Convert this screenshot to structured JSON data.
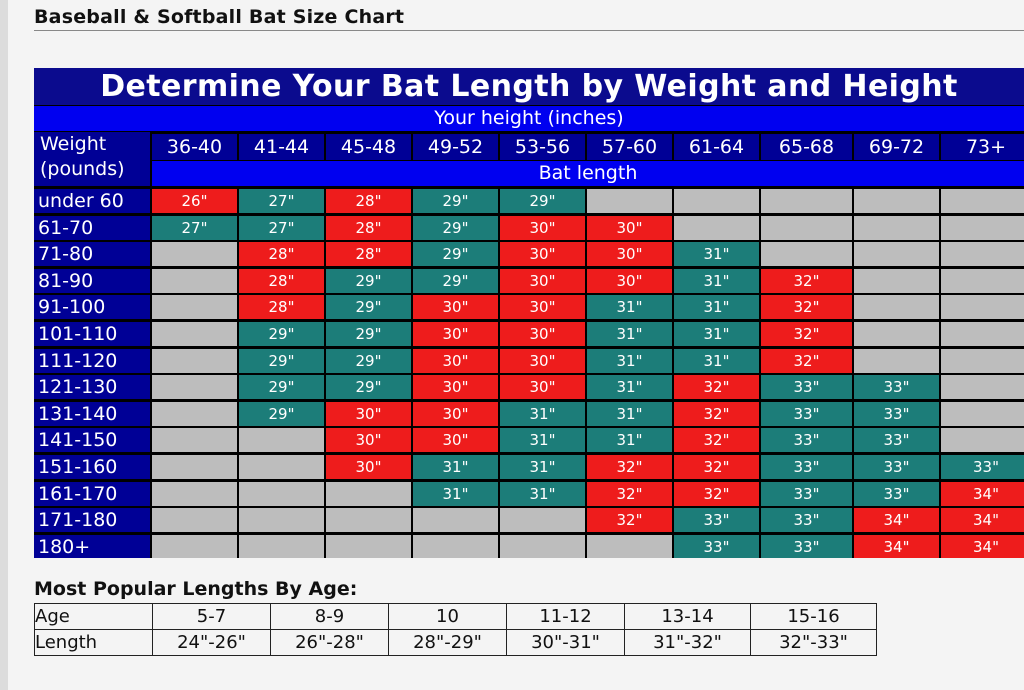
{
  "page_title": "Baseball & Softball Bat Size Chart",
  "chart": {
    "title": "Determine Your Bat Length by Weight and Height",
    "height_label": "Your height (inches)",
    "weight_label_line1": "Weight",
    "weight_label_line2": "(pounds)",
    "bat_length_label": "Bat length",
    "heights": [
      "36-40",
      "41-44",
      "45-48",
      "49-52",
      "53-56",
      "57-60",
      "61-64",
      "65-68",
      "69-72",
      "73+"
    ],
    "rows": [
      {
        "weight": "under 60",
        "cells": [
          [
            "26\"",
            "r"
          ],
          [
            "27\"",
            "t"
          ],
          [
            "28\"",
            "r"
          ],
          [
            "29\"",
            "t"
          ],
          [
            "29\"",
            "t"
          ],
          [
            "",
            "g"
          ],
          [
            "",
            "g"
          ],
          [
            "",
            "g"
          ],
          [
            "",
            "g"
          ],
          [
            "",
            "g"
          ]
        ]
      },
      {
        "weight": "61-70",
        "cells": [
          [
            "27\"",
            "t"
          ],
          [
            "27\"",
            "t"
          ],
          [
            "28\"",
            "r"
          ],
          [
            "29\"",
            "t"
          ],
          [
            "30\"",
            "r"
          ],
          [
            "30\"",
            "r"
          ],
          [
            "",
            "g"
          ],
          [
            "",
            "g"
          ],
          [
            "",
            "g"
          ],
          [
            "",
            "g"
          ]
        ]
      },
      {
        "weight": "71-80",
        "cells": [
          [
            "",
            "g"
          ],
          [
            "28\"",
            "r"
          ],
          [
            "28\"",
            "r"
          ],
          [
            "29\"",
            "t"
          ],
          [
            "30\"",
            "r"
          ],
          [
            "30\"",
            "r"
          ],
          [
            "31\"",
            "t"
          ],
          [
            "",
            "g"
          ],
          [
            "",
            "g"
          ],
          [
            "",
            "g"
          ]
        ]
      },
      {
        "weight": "81-90",
        "cells": [
          [
            "",
            "g"
          ],
          [
            "28\"",
            "r"
          ],
          [
            "29\"",
            "t"
          ],
          [
            "29\"",
            "t"
          ],
          [
            "30\"",
            "r"
          ],
          [
            "30\"",
            "r"
          ],
          [
            "31\"",
            "t"
          ],
          [
            "32\"",
            "r"
          ],
          [
            "",
            "g"
          ],
          [
            "",
            "g"
          ]
        ]
      },
      {
        "weight": "91-100",
        "cells": [
          [
            "",
            "g"
          ],
          [
            "28\"",
            "r"
          ],
          [
            "29\"",
            "t"
          ],
          [
            "30\"",
            "r"
          ],
          [
            "30\"",
            "r"
          ],
          [
            "31\"",
            "t"
          ],
          [
            "31\"",
            "t"
          ],
          [
            "32\"",
            "r"
          ],
          [
            "",
            "g"
          ],
          [
            "",
            "g"
          ]
        ]
      },
      {
        "weight": "101-110",
        "cells": [
          [
            "",
            "g"
          ],
          [
            "29\"",
            "t"
          ],
          [
            "29\"",
            "t"
          ],
          [
            "30\"",
            "r"
          ],
          [
            "30\"",
            "r"
          ],
          [
            "31\"",
            "t"
          ],
          [
            "31\"",
            "t"
          ],
          [
            "32\"",
            "r"
          ],
          [
            "",
            "g"
          ],
          [
            "",
            "g"
          ]
        ]
      },
      {
        "weight": "111-120",
        "cells": [
          [
            "",
            "g"
          ],
          [
            "29\"",
            "t"
          ],
          [
            "29\"",
            "t"
          ],
          [
            "30\"",
            "r"
          ],
          [
            "30\"",
            "r"
          ],
          [
            "31\"",
            "t"
          ],
          [
            "31\"",
            "t"
          ],
          [
            "32\"",
            "r"
          ],
          [
            "",
            "g"
          ],
          [
            "",
            "g"
          ]
        ]
      },
      {
        "weight": "121-130",
        "cells": [
          [
            "",
            "g"
          ],
          [
            "29\"",
            "t"
          ],
          [
            "29\"",
            "t"
          ],
          [
            "30\"",
            "r"
          ],
          [
            "30\"",
            "r"
          ],
          [
            "31\"",
            "t"
          ],
          [
            "32\"",
            "r"
          ],
          [
            "33\"",
            "t"
          ],
          [
            "33\"",
            "t"
          ],
          [
            "",
            "g"
          ]
        ]
      },
      {
        "weight": "131-140",
        "cells": [
          [
            "",
            "g"
          ],
          [
            "29\"",
            "t"
          ],
          [
            "30\"",
            "r"
          ],
          [
            "30\"",
            "r"
          ],
          [
            "31\"",
            "t"
          ],
          [
            "31\"",
            "t"
          ],
          [
            "32\"",
            "r"
          ],
          [
            "33\"",
            "t"
          ],
          [
            "33\"",
            "t"
          ],
          [
            "",
            "g"
          ]
        ]
      },
      {
        "weight": "141-150",
        "cells": [
          [
            "",
            "g"
          ],
          [
            "",
            "g"
          ],
          [
            "30\"",
            "r"
          ],
          [
            "30\"",
            "r"
          ],
          [
            "31\"",
            "t"
          ],
          [
            "31\"",
            "t"
          ],
          [
            "32\"",
            "r"
          ],
          [
            "33\"",
            "t"
          ],
          [
            "33\"",
            "t"
          ],
          [
            "",
            "g"
          ]
        ]
      },
      {
        "weight": "151-160",
        "cells": [
          [
            "",
            "g"
          ],
          [
            "",
            "g"
          ],
          [
            "30\"",
            "r"
          ],
          [
            "31\"",
            "t"
          ],
          [
            "31\"",
            "t"
          ],
          [
            "32\"",
            "r"
          ],
          [
            "32\"",
            "r"
          ],
          [
            "33\"",
            "t"
          ],
          [
            "33\"",
            "t"
          ],
          [
            "33\"",
            "t"
          ]
        ]
      },
      {
        "weight": "161-170",
        "cells": [
          [
            "",
            "g"
          ],
          [
            "",
            "g"
          ],
          [
            "",
            "g"
          ],
          [
            "31\"",
            "t"
          ],
          [
            "31\"",
            "t"
          ],
          [
            "32\"",
            "r"
          ],
          [
            "32\"",
            "r"
          ],
          [
            "33\"",
            "t"
          ],
          [
            "33\"",
            "t"
          ],
          [
            "34\"",
            "r"
          ]
        ]
      },
      {
        "weight": "171-180",
        "cells": [
          [
            "",
            "g"
          ],
          [
            "",
            "g"
          ],
          [
            "",
            "g"
          ],
          [
            "",
            "g"
          ],
          [
            "",
            "g"
          ],
          [
            "32\"",
            "r"
          ],
          [
            "33\"",
            "t"
          ],
          [
            "33\"",
            "t"
          ],
          [
            "34\"",
            "r"
          ],
          [
            "34\"",
            "r"
          ]
        ]
      },
      {
        "weight": "180+",
        "cells": [
          [
            "",
            "g"
          ],
          [
            "",
            "g"
          ],
          [
            "",
            "g"
          ],
          [
            "",
            "g"
          ],
          [
            "",
            "g"
          ],
          [
            "",
            "g"
          ],
          [
            "33\"",
            "t"
          ],
          [
            "33\"",
            "t"
          ],
          [
            "34\"",
            "r"
          ],
          [
            "34\"",
            "r"
          ]
        ]
      }
    ],
    "colors": {
      "red": "#ee1c1c",
      "teal": "#1c7d79",
      "gray": "#bdbdbd",
      "navy": "#000096",
      "blue": "#0000f0",
      "title_bg": "#0b0b8e"
    }
  },
  "popular": {
    "title": "Most Popular Lengths By Age:",
    "age_label": "Age",
    "length_label": "Length",
    "ages": [
      "5-7",
      "8-9",
      "10",
      "11-12",
      "13-14",
      "15-16"
    ],
    "lengths": [
      "24\"-26\"",
      "26\"-28\"",
      "28\"-29\"",
      "30\"-31\"",
      "31\"-32\"",
      "32\"-33\""
    ]
  }
}
